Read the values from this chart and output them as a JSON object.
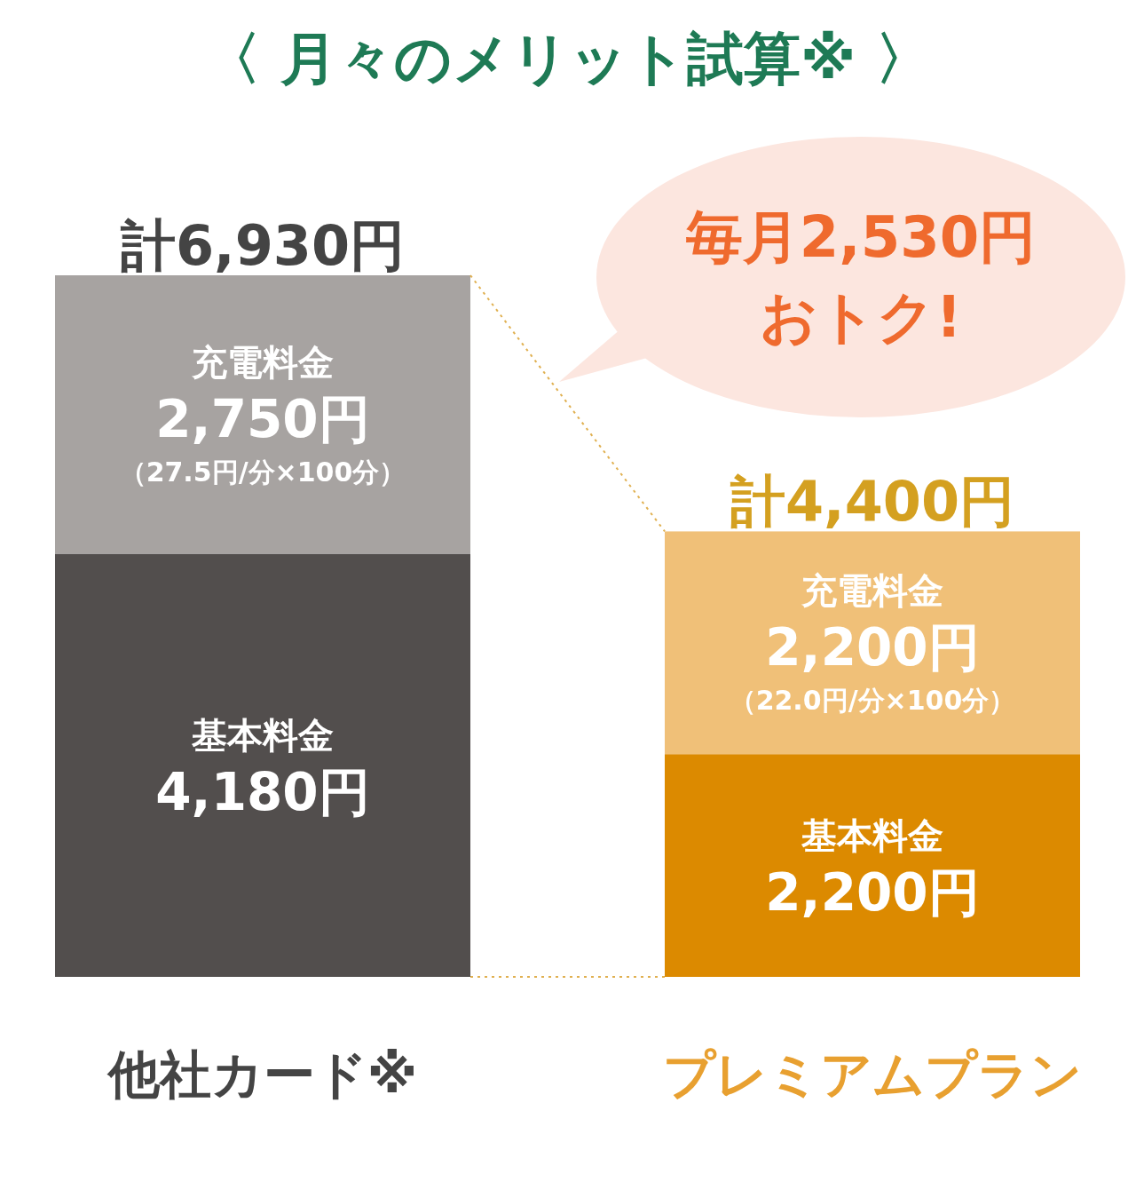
{
  "chart_data": {
    "type": "bar",
    "stacked": true,
    "title": "〈 月々のメリット試算※ 〉",
    "categories": [
      "他社カード※",
      "プレミアムプラン"
    ],
    "tick_labels": "x",
    "series": [
      {
        "name": "基本料金",
        "colors": [
          "#524e4d",
          "#dc8a00"
        ],
        "values": [
          4180,
          2200
        ],
        "value_labels": [
          "4,180円",
          "2,200円"
        ]
      },
      {
        "name": "充電料金",
        "colors": [
          "#a7a3a1",
          "#f0c078"
        ],
        "values": [
          2750,
          2200
        ],
        "value_labels": [
          "2,750円",
          "2,200円"
        ]
      }
    ],
    "totals": [
      "計6,930円",
      "計4,400円"
    ],
    "annotations": [
      "毎月2,530円おトク!",
      "（27.5円/分×100分）",
      "（22.0円/分×100分）"
    ]
  }
}
